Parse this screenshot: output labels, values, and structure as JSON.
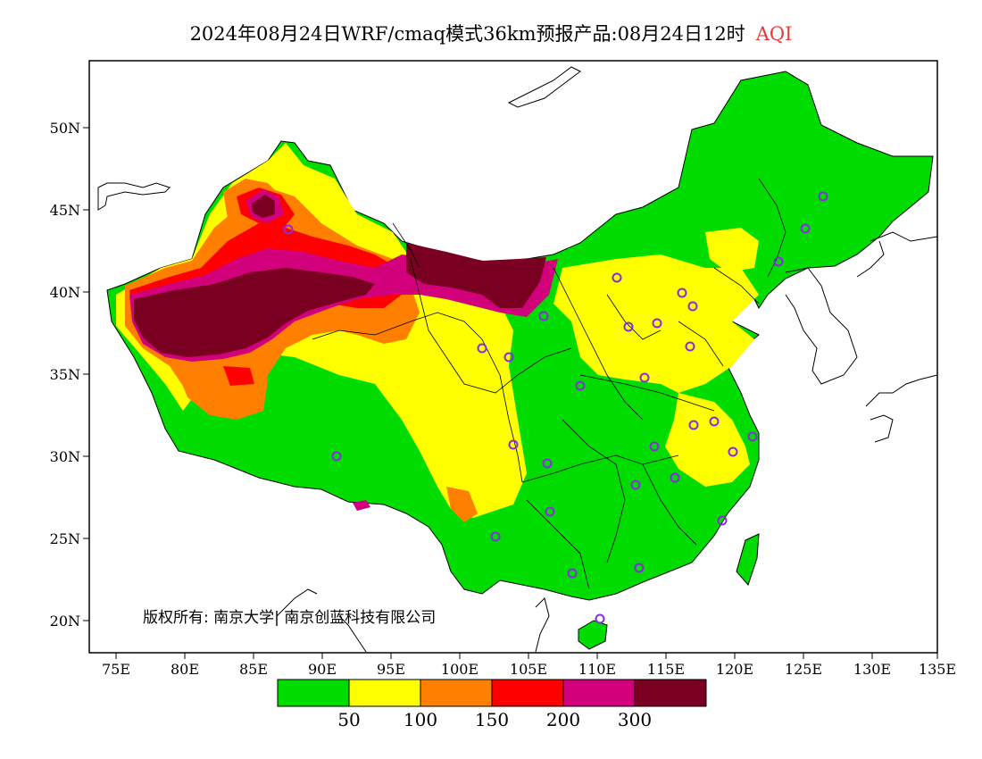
{
  "title": {
    "main": "2024年08月24日WRF/cmaq模式36km预报产品:08月24日12时",
    "accent": "AQI",
    "accent_color": "#e8393a"
  },
  "map": {
    "lat_labels": [
      "50N",
      "45N",
      "40N",
      "35N",
      "30N",
      "25N",
      "20N"
    ],
    "lon_labels": [
      "75E",
      "80E",
      "85E",
      "90E",
      "95E",
      "100E",
      "105E",
      "110E",
      "115E",
      "120E",
      "125E",
      "130E",
      "135E"
    ],
    "copyright": "版权所有: 南京大学| 南京创蓝科技有限公司"
  },
  "legend": {
    "colors": [
      "#00dc00",
      "#ffff00",
      "#ff8000",
      "#ff0000",
      "#d2007a",
      "#7a0022"
    ],
    "labels": [
      "50",
      "100",
      "150",
      "200",
      "300"
    ]
  },
  "colors": {
    "land_bg": "#00dc00",
    "good": "#00dc00",
    "moderate": "#ffff00",
    "usg": "#ff8000",
    "unhealthy": "#ff0000",
    "very_unhealthy": "#d2007a",
    "hazardous": "#7a0022",
    "station_marker": "#8a2be2"
  }
}
